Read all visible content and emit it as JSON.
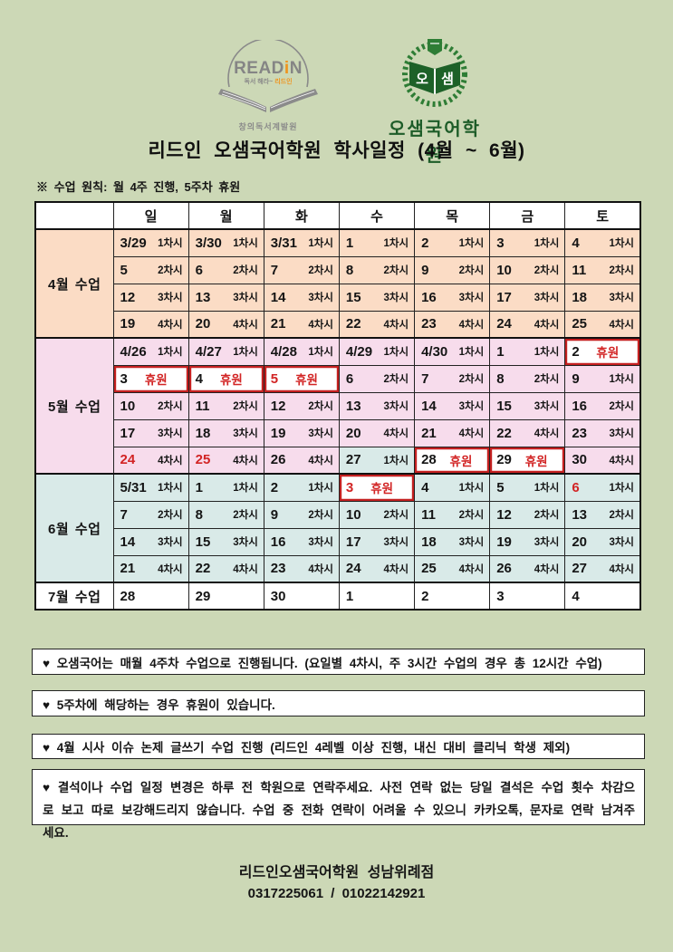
{
  "colors": {
    "page_bg": "#ccd8b6",
    "april_bg": "#fbdcc5",
    "may_bg": "#f7dcec",
    "june_bg": "#d9eae8",
    "july_bg": "#ffffff",
    "red_text": "#d22424",
    "red_border": "#c42020",
    "logo_gray": "#858585",
    "logo_orange": "#ef941d",
    "logo_green": "#2e7d35",
    "logo_dark_green": "#1d5c28"
  },
  "header": {
    "readin_logo": {
      "brand_read": "READ",
      "brand_i": "i",
      "brand_n": "N",
      "tagline_gray": "독서 해라~",
      "tagline_accent": "리드인",
      "subtitle": "창의독서계발원"
    },
    "osam_logo": {
      "book_left": "오",
      "book_right": "샘",
      "name": "오샘국어학원"
    },
    "title": "리드인 오샘국어학원 학사일정 (4월 ~ 6월)",
    "principle": "※ 수업 원칙: 월 4주 진행, 5주차 휴원"
  },
  "calendar": {
    "day_headers": [
      "일",
      "월",
      "화",
      "수",
      "목",
      "금",
      "토"
    ],
    "closed_label": "휴원",
    "sections": [
      {
        "id": "april",
        "label": "4월 수업",
        "color": "#fbdcc5",
        "rows": [
          [
            {
              "d": "3/29",
              "s": "1차시"
            },
            {
              "d": "3/30",
              "s": "1차시"
            },
            {
              "d": "3/31",
              "s": "1차시"
            },
            {
              "d": "1",
              "s": "1차시"
            },
            {
              "d": "2",
              "s": "1차시"
            },
            {
              "d": "3",
              "s": "1차시"
            },
            {
              "d": "4",
              "s": "1차시"
            }
          ],
          [
            {
              "d": "5",
              "s": "2차시"
            },
            {
              "d": "6",
              "s": "2차시"
            },
            {
              "d": "7",
              "s": "2차시"
            },
            {
              "d": "8",
              "s": "2차시"
            },
            {
              "d": "9",
              "s": "2차시"
            },
            {
              "d": "10",
              "s": "2차시"
            },
            {
              "d": "11",
              "s": "2차시"
            }
          ],
          [
            {
              "d": "12",
              "s": "3차시"
            },
            {
              "d": "13",
              "s": "3차시"
            },
            {
              "d": "14",
              "s": "3차시"
            },
            {
              "d": "15",
              "s": "3차시"
            },
            {
              "d": "16",
              "s": "3차시"
            },
            {
              "d": "17",
              "s": "3차시"
            },
            {
              "d": "18",
              "s": "3차시"
            }
          ],
          [
            {
              "d": "19",
              "s": "4차시"
            },
            {
              "d": "20",
              "s": "4차시"
            },
            {
              "d": "21",
              "s": "4차시"
            },
            {
              "d": "22",
              "s": "4차시"
            },
            {
              "d": "23",
              "s": "4차시"
            },
            {
              "d": "24",
              "s": "4차시"
            },
            {
              "d": "25",
              "s": "4차시"
            }
          ]
        ]
      },
      {
        "id": "may",
        "label": "5월 수업",
        "color": "#f7dcec",
        "rows": [
          [
            {
              "d": "4/26",
              "s": "1차시"
            },
            {
              "d": "4/27",
              "s": "1차시"
            },
            {
              "d": "4/28",
              "s": "1차시"
            },
            {
              "d": "4/29",
              "s": "1차시"
            },
            {
              "d": "4/30",
              "s": "1차시"
            },
            {
              "d": "1",
              "s": "1차시"
            },
            {
              "d": "2",
              "s": "휴원",
              "closed": true
            }
          ],
          [
            {
              "d": "3",
              "s": "휴원",
              "closed": true
            },
            {
              "d": "4",
              "s": "휴원",
              "closed": true
            },
            {
              "d": "5",
              "s": "휴원",
              "closed": true,
              "date_red": true
            },
            {
              "d": "6",
              "s": "2차시"
            },
            {
              "d": "7",
              "s": "2차시"
            },
            {
              "d": "8",
              "s": "2차시"
            },
            {
              "d": "9",
              "s": "1차시"
            }
          ],
          [
            {
              "d": "10",
              "s": "2차시"
            },
            {
              "d": "11",
              "s": "2차시"
            },
            {
              "d": "12",
              "s": "2차시"
            },
            {
              "d": "13",
              "s": "3차시"
            },
            {
              "d": "14",
              "s": "3차시"
            },
            {
              "d": "15",
              "s": "3차시"
            },
            {
              "d": "16",
              "s": "2차시"
            }
          ],
          [
            {
              "d": "17",
              "s": "3차시"
            },
            {
              "d": "18",
              "s": "3차시"
            },
            {
              "d": "19",
              "s": "3차시"
            },
            {
              "d": "20",
              "s": "4차시"
            },
            {
              "d": "21",
              "s": "4차시"
            },
            {
              "d": "22",
              "s": "4차시"
            },
            {
              "d": "23",
              "s": "3차시"
            }
          ],
          [
            {
              "d": "24",
              "s": "4차시",
              "date_red": true
            },
            {
              "d": "25",
              "s": "4차시",
              "date_red": true
            },
            {
              "d": "26",
              "s": "4차시"
            },
            {
              "d": "27",
              "s": "1차시",
              "bg": "#d9eae8"
            },
            {
              "d": "28",
              "s": "휴원",
              "closed": true
            },
            {
              "d": "29",
              "s": "휴원",
              "closed": true
            },
            {
              "d": "30",
              "s": "4차시"
            }
          ]
        ]
      },
      {
        "id": "june",
        "label": "6월 수업",
        "color": "#d9eae8",
        "rows": [
          [
            {
              "d": "5/31",
              "s": "1차시"
            },
            {
              "d": "1",
              "s": "1차시"
            },
            {
              "d": "2",
              "s": "1차시"
            },
            {
              "d": "3",
              "s": "휴원",
              "closed": true,
              "date_red": true
            },
            {
              "d": "4",
              "s": "1차시"
            },
            {
              "d": "5",
              "s": "1차시"
            },
            {
              "d": "6",
              "s": "1차시",
              "date_red": true
            }
          ],
          [
            {
              "d": "7",
              "s": "2차시"
            },
            {
              "d": "8",
              "s": "2차시"
            },
            {
              "d": "9",
              "s": "2차시"
            },
            {
              "d": "10",
              "s": "2차시"
            },
            {
              "d": "11",
              "s": "2차시"
            },
            {
              "d": "12",
              "s": "2차시"
            },
            {
              "d": "13",
              "s": "2차시"
            }
          ],
          [
            {
              "d": "14",
              "s": "3차시"
            },
            {
              "d": "15",
              "s": "3차시"
            },
            {
              "d": "16",
              "s": "3차시"
            },
            {
              "d": "17",
              "s": "3차시"
            },
            {
              "d": "18",
              "s": "3차시"
            },
            {
              "d": "19",
              "s": "3차시"
            },
            {
              "d": "20",
              "s": "3차시"
            }
          ],
          [
            {
              "d": "21",
              "s": "4차시"
            },
            {
              "d": "22",
              "s": "4차시"
            },
            {
              "d": "23",
              "s": "4차시"
            },
            {
              "d": "24",
              "s": "4차시"
            },
            {
              "d": "25",
              "s": "4차시"
            },
            {
              "d": "26",
              "s": "4차시"
            },
            {
              "d": "27",
              "s": "4차시"
            }
          ]
        ]
      },
      {
        "id": "july",
        "label": "7월 수업",
        "color": "#ffffff",
        "rows": [
          [
            {
              "d": "28",
              "s": ""
            },
            {
              "d": "29",
              "s": ""
            },
            {
              "d": "30",
              "s": ""
            },
            {
              "d": "1",
              "s": ""
            },
            {
              "d": "2",
              "s": ""
            },
            {
              "d": "3",
              "s": ""
            },
            {
              "d": "4",
              "s": ""
            }
          ]
        ]
      }
    ]
  },
  "notes": [
    "♥  오샘국어는 매월 4주차 수업으로 진행됩니다. (요일별 4차시, 주 3시간 수업의 경우 총 12시간 수업)",
    "♥  5주차에 해당하는 경우 휴원이 있습니다.",
    "♥  4월 시사 이슈 논제 글쓰기 수업 진행 (리드인 4레벨 이상 진행, 내신 대비 클리닉 학생 제외)",
    "♥  결석이나 수업 일정 변경은 하루 전 학원으로 연락주세요. 사전 연락 없는 당일 결석은 수업 횟수 차감으로 보고 따로 보강해드리지 않습니다. 수업 중 전화 연락이 어려울 수 있으니 카카오톡, 문자로 연락 남겨주세요."
  ],
  "footer": {
    "academy": "리드인오샘국어학원 성남위례점",
    "phones": "0317225061  /  01022142921"
  }
}
